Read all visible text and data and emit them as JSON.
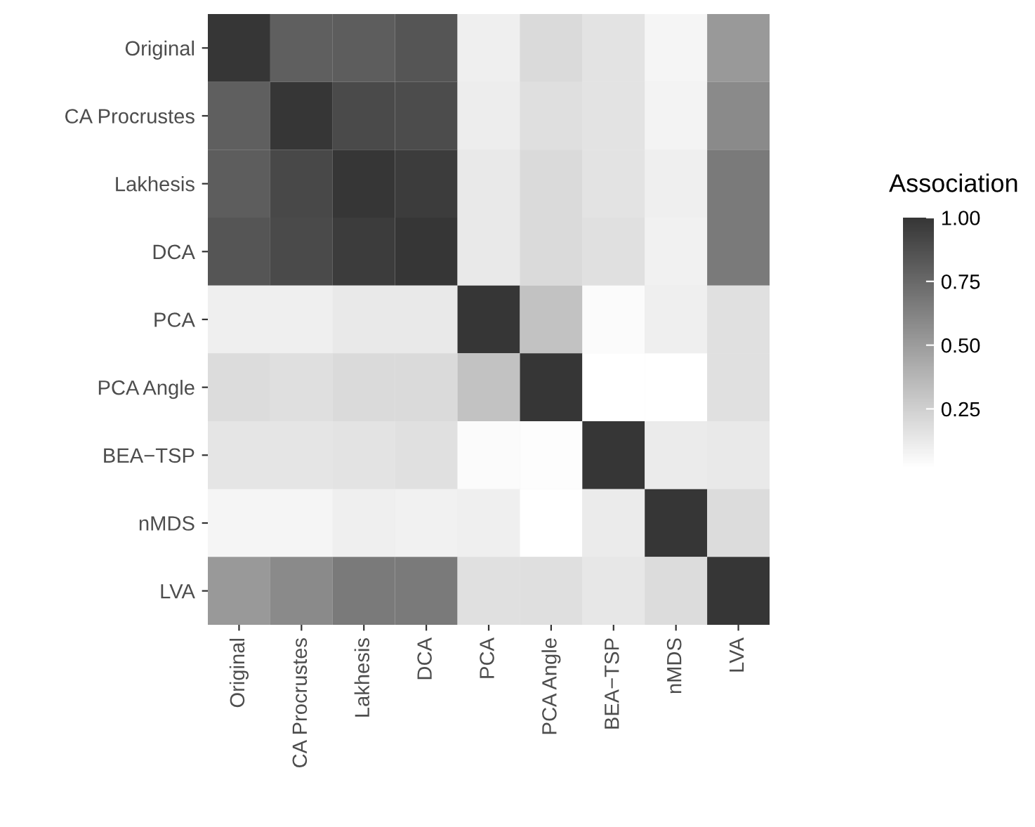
{
  "chart_data": {
    "type": "heatmap",
    "legend_title": "Association",
    "categories": [
      "Original",
      "CA Procrustes",
      "Lakhesis",
      "DCA",
      "PCA",
      "PCA Angle",
      "BEA−TSP",
      "nMDS",
      "LVA"
    ],
    "y_categories": [
      "Original",
      "CA Procrustes",
      "Lakhesis",
      "DCA",
      "PCA",
      "PCA Angle",
      "BEA−TSP",
      "nMDS",
      "LVA"
    ],
    "cells": [
      [
        1.0,
        0.8,
        0.81,
        0.85,
        0.1,
        0.2,
        0.16,
        0.07,
        0.52
      ],
      [
        0.8,
        1.0,
        0.9,
        0.89,
        0.11,
        0.18,
        0.16,
        0.08,
        0.59
      ],
      [
        0.81,
        0.91,
        1.0,
        0.97,
        0.13,
        0.2,
        0.16,
        0.1,
        0.67
      ],
      [
        0.85,
        0.9,
        0.97,
        1.0,
        0.13,
        0.2,
        0.17,
        0.09,
        0.67
      ],
      [
        0.1,
        0.1,
        0.13,
        0.13,
        1.0,
        0.32,
        0.04,
        0.1,
        0.17
      ],
      [
        0.19,
        0.18,
        0.2,
        0.2,
        0.32,
        1.0,
        0.02,
        0.02,
        0.17
      ],
      [
        0.15,
        0.15,
        0.16,
        0.17,
        0.04,
        0.03,
        1.0,
        0.12,
        0.13
      ],
      [
        0.07,
        0.07,
        0.1,
        0.09,
        0.1,
        0.02,
        0.12,
        1.0,
        0.19
      ],
      [
        0.52,
        0.59,
        0.67,
        0.67,
        0.17,
        0.18,
        0.14,
        0.19,
        1.0
      ]
    ],
    "clim": [
      0.02,
      1.0
    ],
    "cticks": [
      {
        "value": 0.25,
        "label": "0.25"
      },
      {
        "value": 0.5,
        "label": "0.50"
      },
      {
        "value": 0.75,
        "label": "0.75"
      },
      {
        "value": 1.0,
        "label": "1.00"
      }
    ],
    "colors": [
      "#ffffff",
      "#363636"
    ]
  }
}
